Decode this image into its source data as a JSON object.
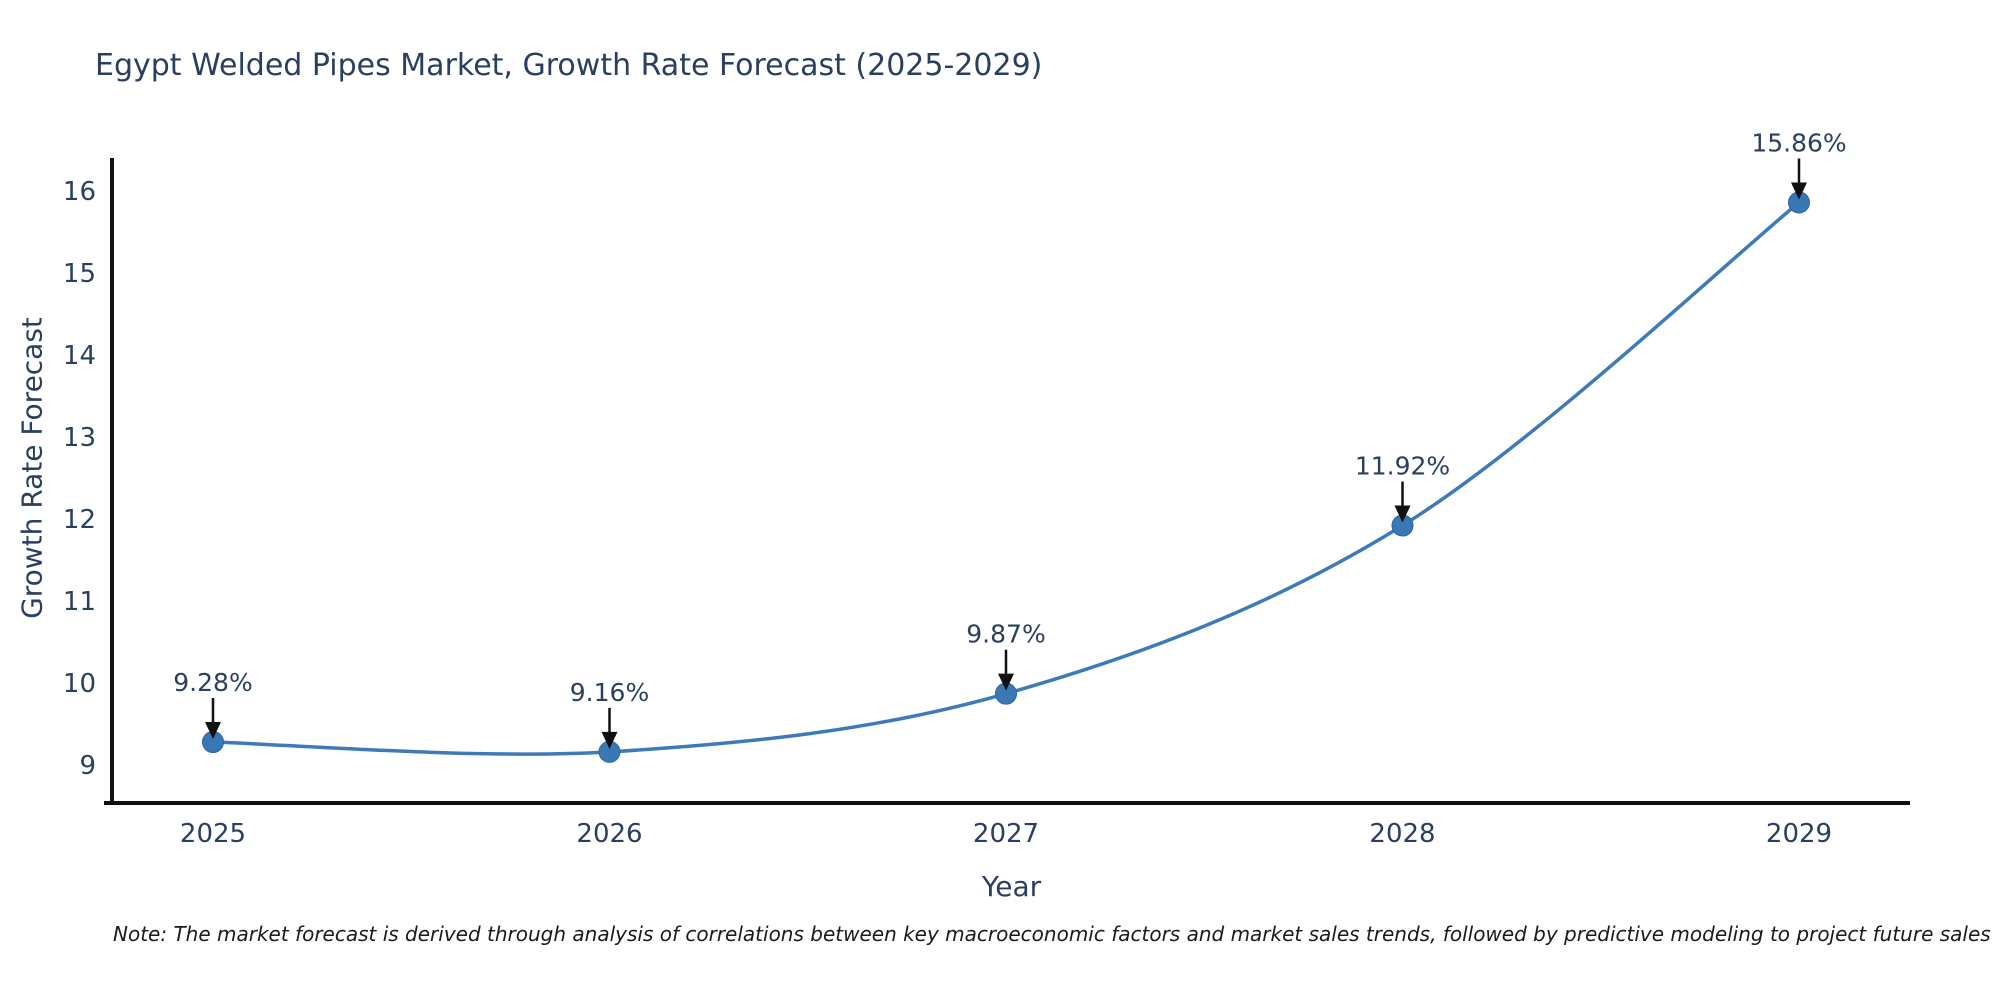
{
  "note": {
    "text": "Note: The market forecast is derived through analysis of correlations between key macroeconomic factors and market sales trends, followed by predictive modeling to project future sales"
  },
  "chart_data": {
    "type": "line",
    "title": "Egypt Welded Pipes Market, Growth Rate Forecast (2025-2029)",
    "xlabel": "Year",
    "ylabel": "Growth Rate Forecast",
    "x": [
      2025,
      2026,
      2027,
      2028,
      2029
    ],
    "series": [
      {
        "name": "Growth Rate Forecast",
        "values": [
          9.28,
          9.16,
          9.87,
          11.92,
          15.86
        ]
      }
    ],
    "point_labels": [
      "9.28%",
      "9.16%",
      "9.87%",
      "11.92%",
      "15.86%"
    ],
    "yticks": [
      9,
      10,
      11,
      12,
      13,
      14,
      15,
      16
    ],
    "ylim": [
      8.55,
      16.4
    ],
    "xlim": [
      2024.75,
      2029.28
    ],
    "grid": false,
    "legend": "none",
    "line_shape": "spline",
    "annotation_style": "arrow-down-to-point",
    "colors": {
      "line": "#3d7ab8",
      "marker": "#3a78b5",
      "marker_edge": "#2d639e",
      "axis": "#111111",
      "tick_text": "#2a3f5f",
      "annotation_text": "#2a3f5f",
      "arrow": "#111111",
      "background": "#ffffff"
    }
  }
}
